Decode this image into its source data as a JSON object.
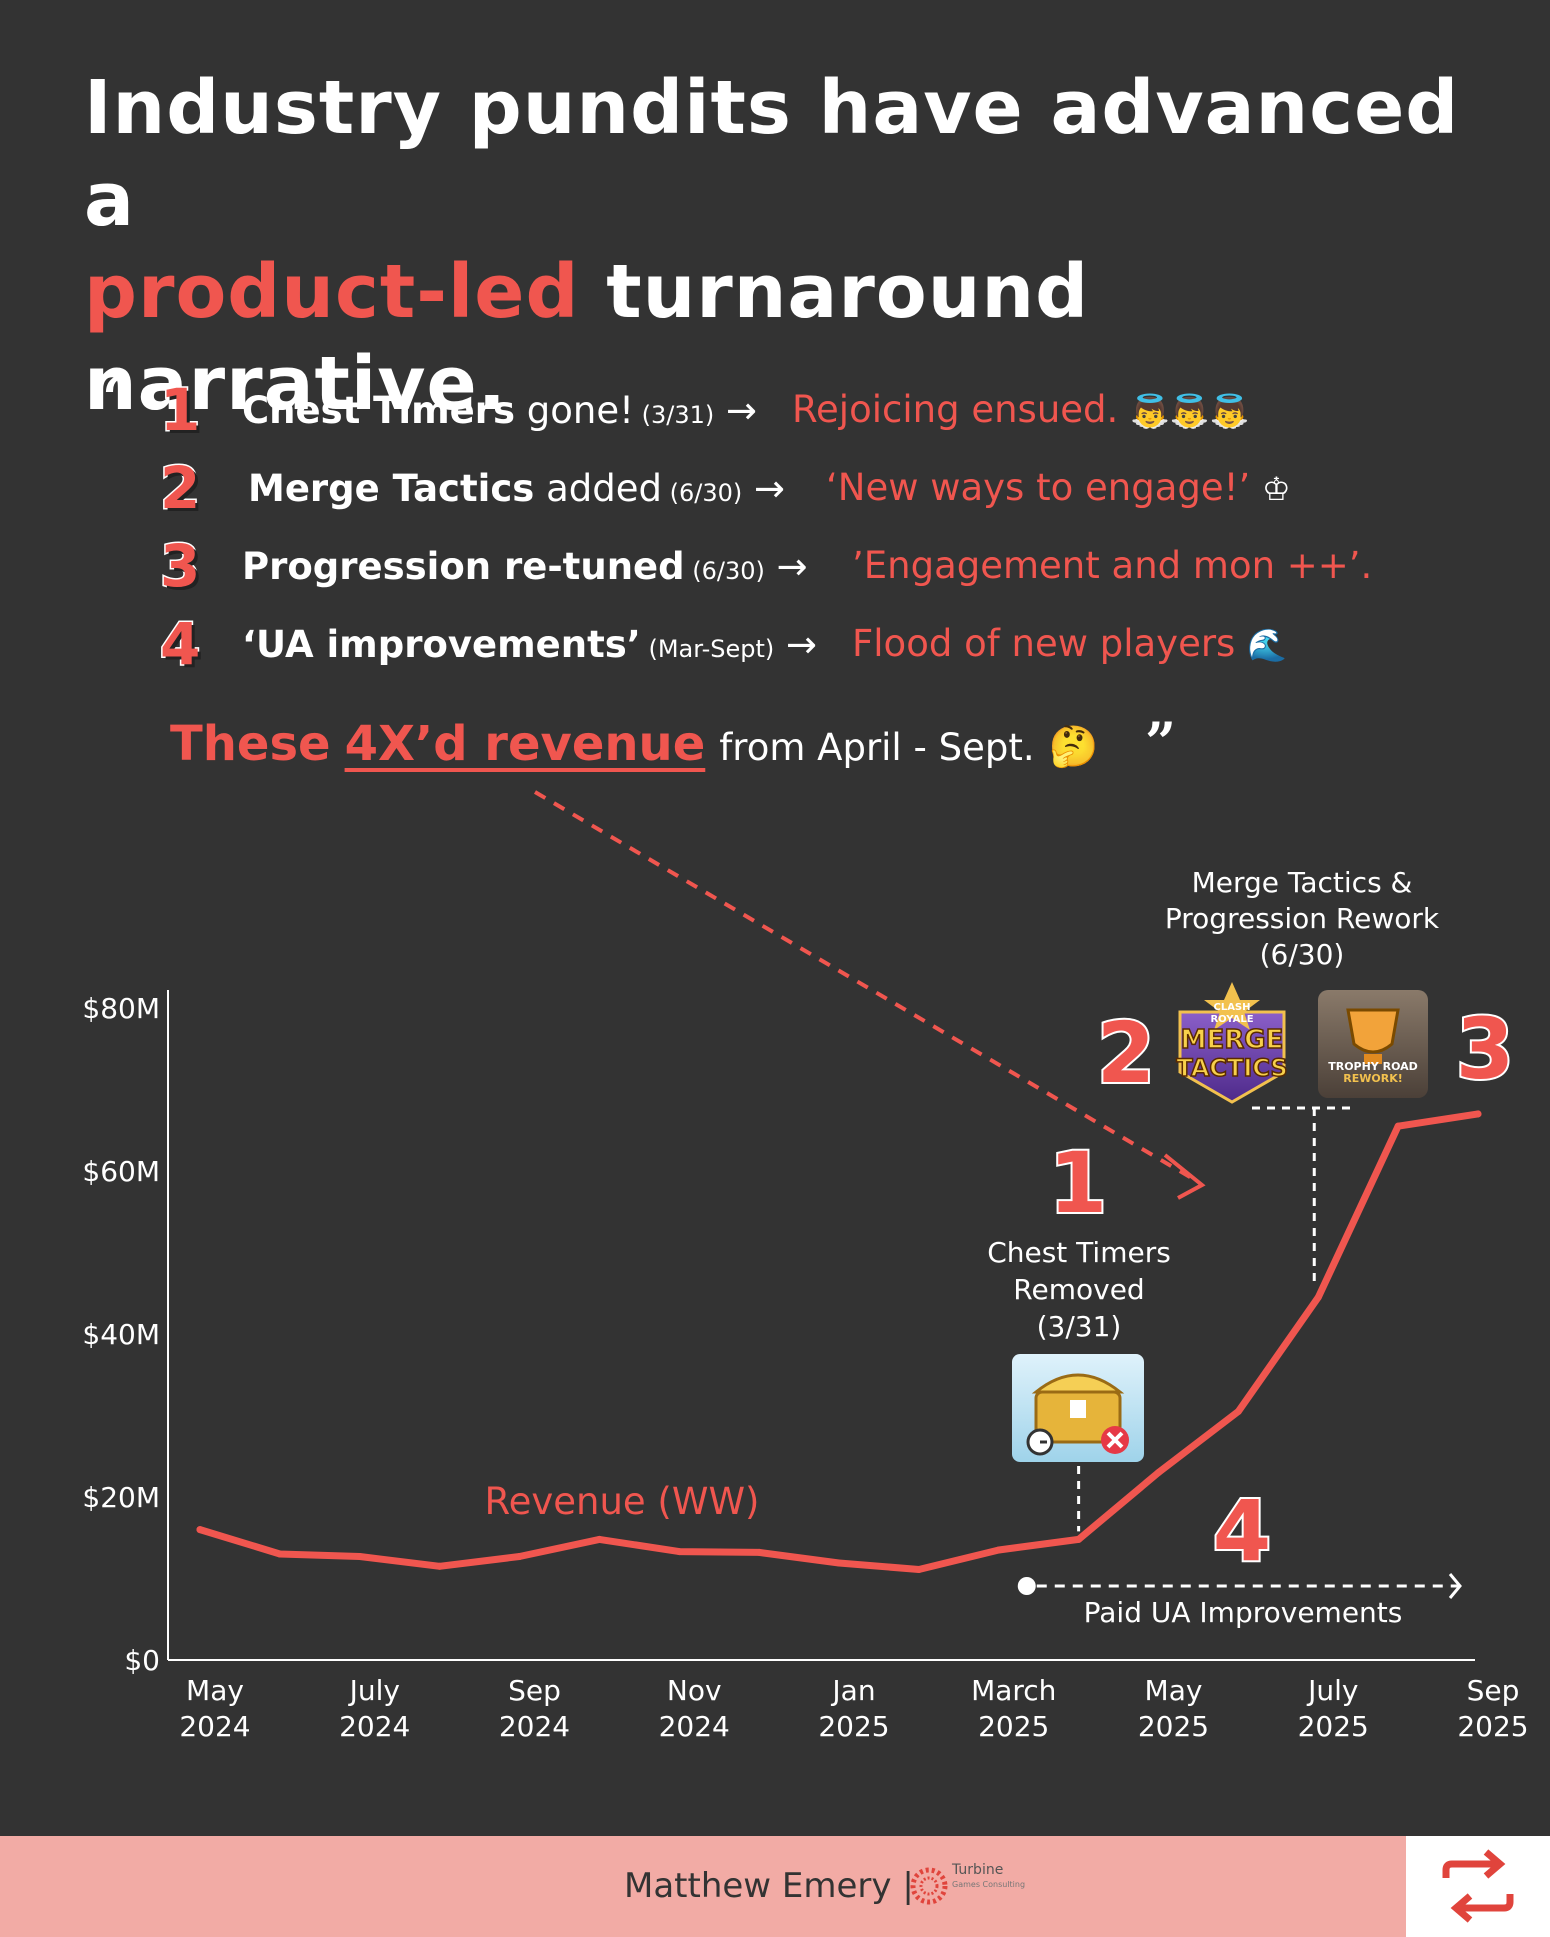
{
  "headline": {
    "line1": "Industry pundits have advanced a",
    "accent": "product-led",
    "line2_rest": " turnaround narrative."
  },
  "quote": {
    "open": "“",
    "close": "”"
  },
  "items": [
    {
      "number": "1",
      "bold": "Chest Timers",
      "rest": " gone!",
      "date": " (3/31)",
      "arrow": " →",
      "effect": "Rejoicing ensued.",
      "effect_emoji": "👼👼👼"
    },
    {
      "number": "2",
      "bold": "Merge Tactics",
      "rest": " added",
      "date": " (6/30)",
      "arrow": " →",
      "effect": "‘New ways to engage!’",
      "effect_emoji": "♔"
    },
    {
      "number": "3",
      "bold": "Progression re-tuned",
      "rest": "",
      "date": "  (6/30)",
      "arrow": " →",
      "effect": "’Engagement and mon ++’.",
      "effect_emoji": ""
    },
    {
      "number": "4",
      "bold": "‘UA improvements’",
      "rest": "",
      "date": " (Mar-Sept)",
      "arrow": " →",
      "effect": "Flood of new players",
      "effect_emoji": "🌊"
    }
  ],
  "summary": {
    "lead": "These",
    "emph": "4X’d revenue",
    "rest": "from April - Sept.",
    "emoji": "🤔"
  },
  "colors": {
    "background": "#333333",
    "accent": "#f0564f",
    "text": "#ffffff",
    "footer": "#f2aba5"
  },
  "chart_data": {
    "type": "line",
    "x": [
      "2024-05",
      "2024-06",
      "2024-07",
      "2024-08",
      "2024-09",
      "2024-10",
      "2024-11",
      "2024-12",
      "2025-01",
      "2025-02",
      "2025-03",
      "2025-04",
      "2025-05",
      "2025-06",
      "2025-07",
      "2025-08",
      "2025-09"
    ],
    "series": [
      {
        "name": "Revenue (WW)",
        "values": [
          16,
          13,
          12.7,
          11.5,
          12.7,
          14.8,
          13.3,
          13.2,
          11.9,
          11.1,
          13.5,
          14.8,
          23,
          30.5,
          44.5,
          65.5,
          67
        ]
      }
    ],
    "ylim": [
      0,
      80
    ],
    "yticks": [
      {
        "value": 0,
        "label": "$0"
      },
      {
        "value": 20,
        "label": "$20M"
      },
      {
        "value": 40,
        "label": "$40M"
      },
      {
        "value": 60,
        "label": "$60M"
      },
      {
        "value": 80,
        "label": "$80M"
      }
    ],
    "xticks": [
      {
        "x": "2024-05",
        "label1": "May",
        "label2": "2024"
      },
      {
        "x": "2024-07",
        "label1": "July",
        "label2": "2024"
      },
      {
        "x": "2024-09",
        "label1": "Sep",
        "label2": "2024"
      },
      {
        "x": "2024-11",
        "label1": "Nov",
        "label2": "2024"
      },
      {
        "x": "2025-01",
        "label1": "Jan",
        "label2": "2025"
      },
      {
        "x": "2025-03",
        "label1": "March",
        "label2": "2025"
      },
      {
        "x": "2025-05",
        "label1": "May",
        "label2": "2025"
      },
      {
        "x": "2025-07",
        "label1": "July",
        "label2": "2025"
      },
      {
        "x": "2025-09",
        "label1": "Sep",
        "label2": "2025"
      }
    ],
    "grid": false,
    "annotations": {
      "chest": {
        "number": "1",
        "lines": [
          "Chest Timers",
          "Removed",
          "(3/31)"
        ],
        "x": "2025-04"
      },
      "merge": {
        "number": "2",
        "title_lines": [
          "Merge Tactics &",
          "Progression Rework",
          "(6/30)"
        ],
        "x": "2025-07"
      },
      "progression": {
        "number": "3"
      },
      "ua": {
        "number": "4",
        "label": "Paid UA Improvements",
        "from": "2025-03",
        "to": "2025-09"
      },
      "badge_merge": {
        "lines": [
          "CLASH",
          "ROYALE",
          "MERGE",
          "TACTICS"
        ]
      },
      "badge_trophy": {
        "lines": [
          "TROPHY ROAD",
          "REWORK!"
        ]
      }
    }
  },
  "footer": {
    "author": "Matthew Emery  |",
    "brand": "Turbine",
    "brand_sub": "Games Consulting"
  }
}
